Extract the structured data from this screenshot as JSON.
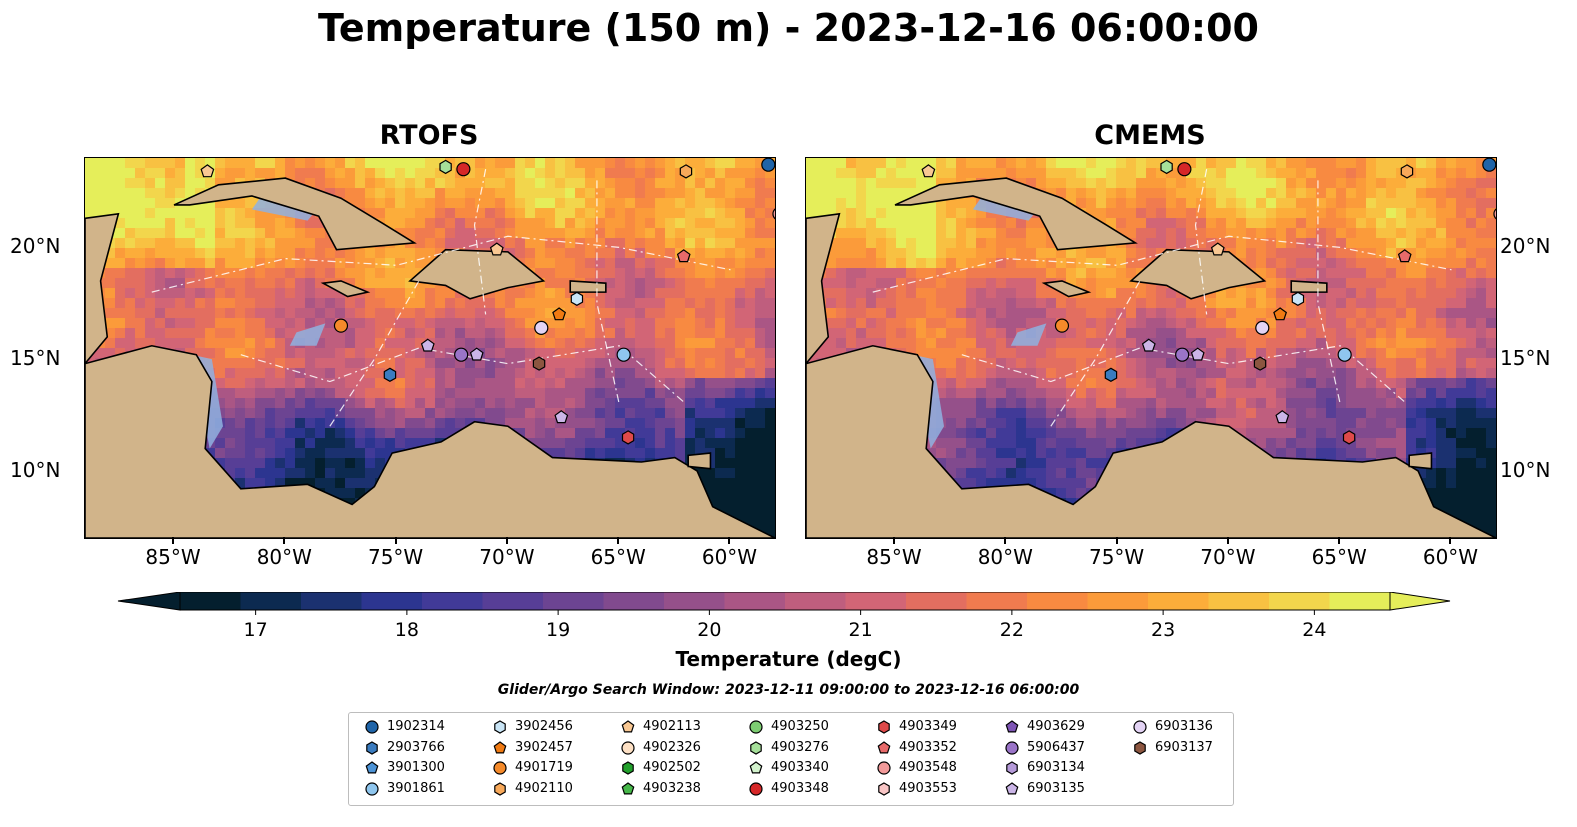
{
  "title": "Temperature (150 m) - 2023-12-16 06:00:00",
  "panels": [
    {
      "name": "RTOFS"
    },
    {
      "name": "CMEMS"
    }
  ],
  "axes": {
    "x_ticks": [
      {
        "lon": -85,
        "label": "85°W"
      },
      {
        "lon": -80,
        "label": "80°W"
      },
      {
        "lon": -75,
        "label": "75°W"
      },
      {
        "lon": -70,
        "label": "70°W"
      },
      {
        "lon": -65,
        "label": "65°W"
      },
      {
        "lon": -60,
        "label": "60°W"
      }
    ],
    "y_ticks": [
      {
        "lat": 20,
        "label": "20°N"
      },
      {
        "lat": 15,
        "label": "15°N"
      },
      {
        "lat": 10,
        "label": "10°N"
      }
    ],
    "lon_range": [
      -89.0,
      -58.0
    ],
    "lat_range": [
      7.0,
      24.0
    ]
  },
  "colorbar": {
    "label": "Temperature (degC)",
    "min": 16.5,
    "max": 24.5,
    "step": 0.5,
    "extend": "both",
    "ticks": [
      {
        "value": 17,
        "label": "17"
      },
      {
        "value": 18,
        "label": "18"
      },
      {
        "value": 19,
        "label": "19"
      },
      {
        "value": 20,
        "label": "20"
      },
      {
        "value": 21,
        "label": "21"
      },
      {
        "value": 22,
        "label": "22"
      },
      {
        "value": 23,
        "label": "23"
      },
      {
        "value": 24,
        "label": "24"
      }
    ],
    "colors": [
      "#041f2e",
      "#0c2a50",
      "#1b3170",
      "#2c3590",
      "#413a98",
      "#573e96",
      "#6c4492",
      "#814a8e",
      "#95508a",
      "#aa5685",
      "#bf5e7e",
      "#d26576",
      "#e36e60",
      "#f07b4f",
      "#f88a41",
      "#fb9b3a",
      "#fcad3a",
      "#f8c142",
      "#f2d64c",
      "#e5ee5a"
    ]
  },
  "search_window": "Glider/Argo Search Window: 2023-12-11 09:00:00 to 2023-12-16 06:00:00",
  "legend": [
    {
      "id": "1902314",
      "marker": "circle",
      "color": "#1f64a8"
    },
    {
      "id": "2903766",
      "marker": "hexagon",
      "color": "#3a7bbf"
    },
    {
      "id": "3901300",
      "marker": "pentagon",
      "color": "#4c93d6"
    },
    {
      "id": "3901861",
      "marker": "circle",
      "color": "#8fc6ee"
    },
    {
      "id": "3902456",
      "marker": "hexagon",
      "color": "#c9e5f6"
    },
    {
      "id": "3902457",
      "marker": "pentagon",
      "color": "#f07a12"
    },
    {
      "id": "4901719",
      "marker": "circle",
      "color": "#f58a2a"
    },
    {
      "id": "4902110",
      "marker": "hexagon",
      "color": "#f8a95a"
    },
    {
      "id": "4902113",
      "marker": "pentagon",
      "color": "#f9c893"
    },
    {
      "id": "4902326",
      "marker": "circle",
      "color": "#fde0c4"
    },
    {
      "id": "4902502",
      "marker": "hexagon",
      "color": "#22a02c"
    },
    {
      "id": "4903238",
      "marker": "pentagon",
      "color": "#46b84a"
    },
    {
      "id": "4903250",
      "marker": "circle",
      "color": "#7dcd72"
    },
    {
      "id": "4903276",
      "marker": "hexagon",
      "color": "#a6e09a"
    },
    {
      "id": "4903340",
      "marker": "pentagon",
      "color": "#d3f3cd"
    },
    {
      "id": "4903348",
      "marker": "circle",
      "color": "#d62728"
    },
    {
      "id": "4903349",
      "marker": "hexagon",
      "color": "#df4a4a"
    },
    {
      "id": "4903352",
      "marker": "pentagon",
      "color": "#e86a6a"
    },
    {
      "id": "4903548",
      "marker": "circle",
      "color": "#f29a9a"
    },
    {
      "id": "4903553",
      "marker": "hexagon",
      "color": "#f9c6c6"
    },
    {
      "id": "4903629",
      "marker": "pentagon",
      "color": "#7e55b5"
    },
    {
      "id": "5906437",
      "marker": "circle",
      "color": "#9a74c8"
    },
    {
      "id": "6903134",
      "marker": "hexagon",
      "color": "#b59ad9"
    },
    {
      "id": "6903135",
      "marker": "pentagon",
      "color": "#cbb5e7"
    },
    {
      "id": "6903136",
      "marker": "circle",
      "color": "#e3d3f4"
    },
    {
      "id": "6903137",
      "marker": "hexagon",
      "color": "#8c5640"
    }
  ],
  "observations": [
    {
      "id": "4903348",
      "lon": -72.0,
      "lat": 23.5
    },
    {
      "id": "4903276",
      "lon": -72.8,
      "lat": 23.6
    },
    {
      "id": "4902113",
      "lon": -83.5,
      "lat": 23.4
    },
    {
      "id": "4902110",
      "lon": -62.0,
      "lat": 23.4
    },
    {
      "id": "1902314",
      "lon": -58.3,
      "lat": 23.7
    },
    {
      "id": "4903548",
      "lon": -57.8,
      "lat": 21.5
    },
    {
      "id": "4903352",
      "lon": -62.1,
      "lat": 19.6
    },
    {
      "id": "4902113",
      "lon": -70.5,
      "lat": 19.9
    },
    {
      "id": "3902456",
      "lon": -66.9,
      "lat": 17.7
    },
    {
      "id": "3902457",
      "lon": -67.7,
      "lat": 17.0
    },
    {
      "id": "4901719",
      "lon": -77.5,
      "lat": 16.5
    },
    {
      "id": "6903136",
      "lon": -68.5,
      "lat": 16.4
    },
    {
      "id": "6903135",
      "lon": -73.6,
      "lat": 15.6
    },
    {
      "id": "5906437",
      "lon": -72.1,
      "lat": 15.2
    },
    {
      "id": "6903135",
      "lon": -71.4,
      "lat": 15.2
    },
    {
      "id": "3901861",
      "lon": -64.8,
      "lat": 15.2
    },
    {
      "id": "6903137",
      "lon": -68.6,
      "lat": 14.8
    },
    {
      "id": "2903766",
      "lon": -75.3,
      "lat": 14.3
    },
    {
      "id": "6903135",
      "lon": -67.6,
      "lat": 12.4
    },
    {
      "id": "4903349",
      "lon": -64.6,
      "lat": 11.5
    }
  ]
}
